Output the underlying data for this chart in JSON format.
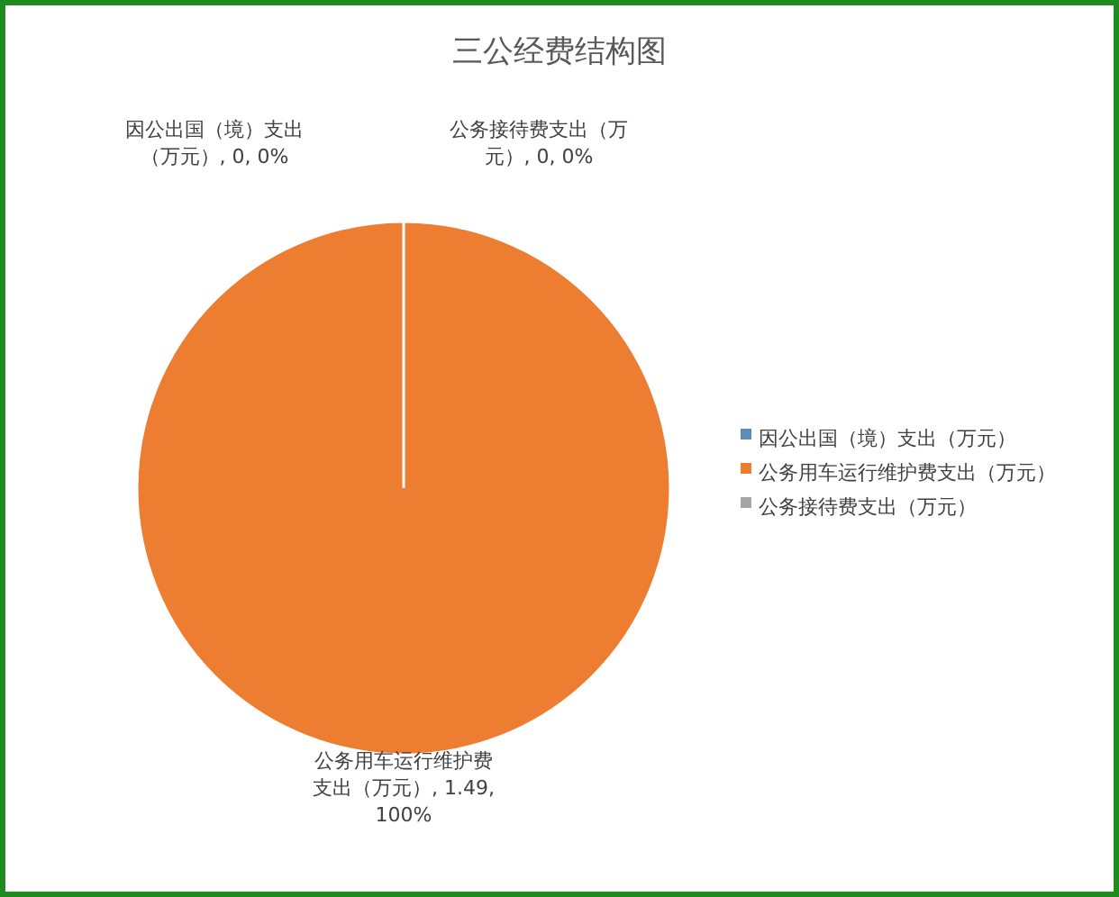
{
  "chart_data": {
    "type": "pie",
    "title": "三公经费结构图",
    "categories": [
      "因公出国（境）支出（万元）",
      "公务用车运行维护费支出（万元）",
      "公务接待费支出（万元）"
    ],
    "values": [
      0,
      1.49,
      0
    ],
    "colors": [
      "#5b8db8",
      "#ed7d31",
      "#a5a5a5"
    ],
    "value_labels": [
      "因公出国（境）支出（万元）, 0, 0%",
      "公务用车运行维护费支出（万元）, 1.49, 100%",
      "公务接待费支出（万元）, 0, 0%"
    ],
    "legend": "right"
  }
}
